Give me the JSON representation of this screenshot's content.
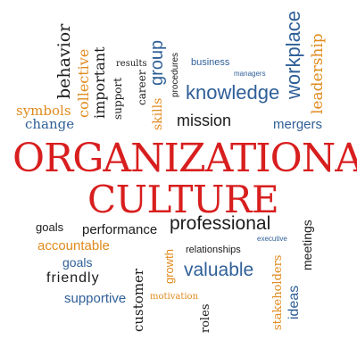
{
  "colors": {
    "black": "#1b1b1b",
    "blue": "#2f5f98",
    "orange": "#e08a1c",
    "red": "#d81e1e"
  },
  "title": {
    "line1": "ORGANIZATIONAL",
    "line2": "CULTURE"
  },
  "top_words": {
    "symbols": "symbols",
    "change": "change",
    "behavior": "behavior",
    "collective": "collective",
    "important": "important",
    "support": "support",
    "results": "results",
    "career": "career",
    "skills": "skills",
    "group": "group",
    "procedures": "procedures",
    "business": "business",
    "managers": "managers",
    "knowledge": "knowledge",
    "mission": "mission",
    "workplace": "workplace",
    "leadership": "leadership",
    "mergers": "mergers"
  },
  "bottom_words": {
    "goals1": "goals",
    "performance": "performance",
    "professional": "professional",
    "executive": "executive",
    "meetings": "meetings",
    "accountable": "accountable",
    "relationships": "relationships",
    "goals2": "goals",
    "growth": "growth",
    "valuable": "valuable",
    "customer": "customer",
    "friendly": "friendly",
    "stakeholders": "stakeholders",
    "ideas": "ideas",
    "supportive": "supportive",
    "motivation": "motivation",
    "roles": "roles"
  }
}
